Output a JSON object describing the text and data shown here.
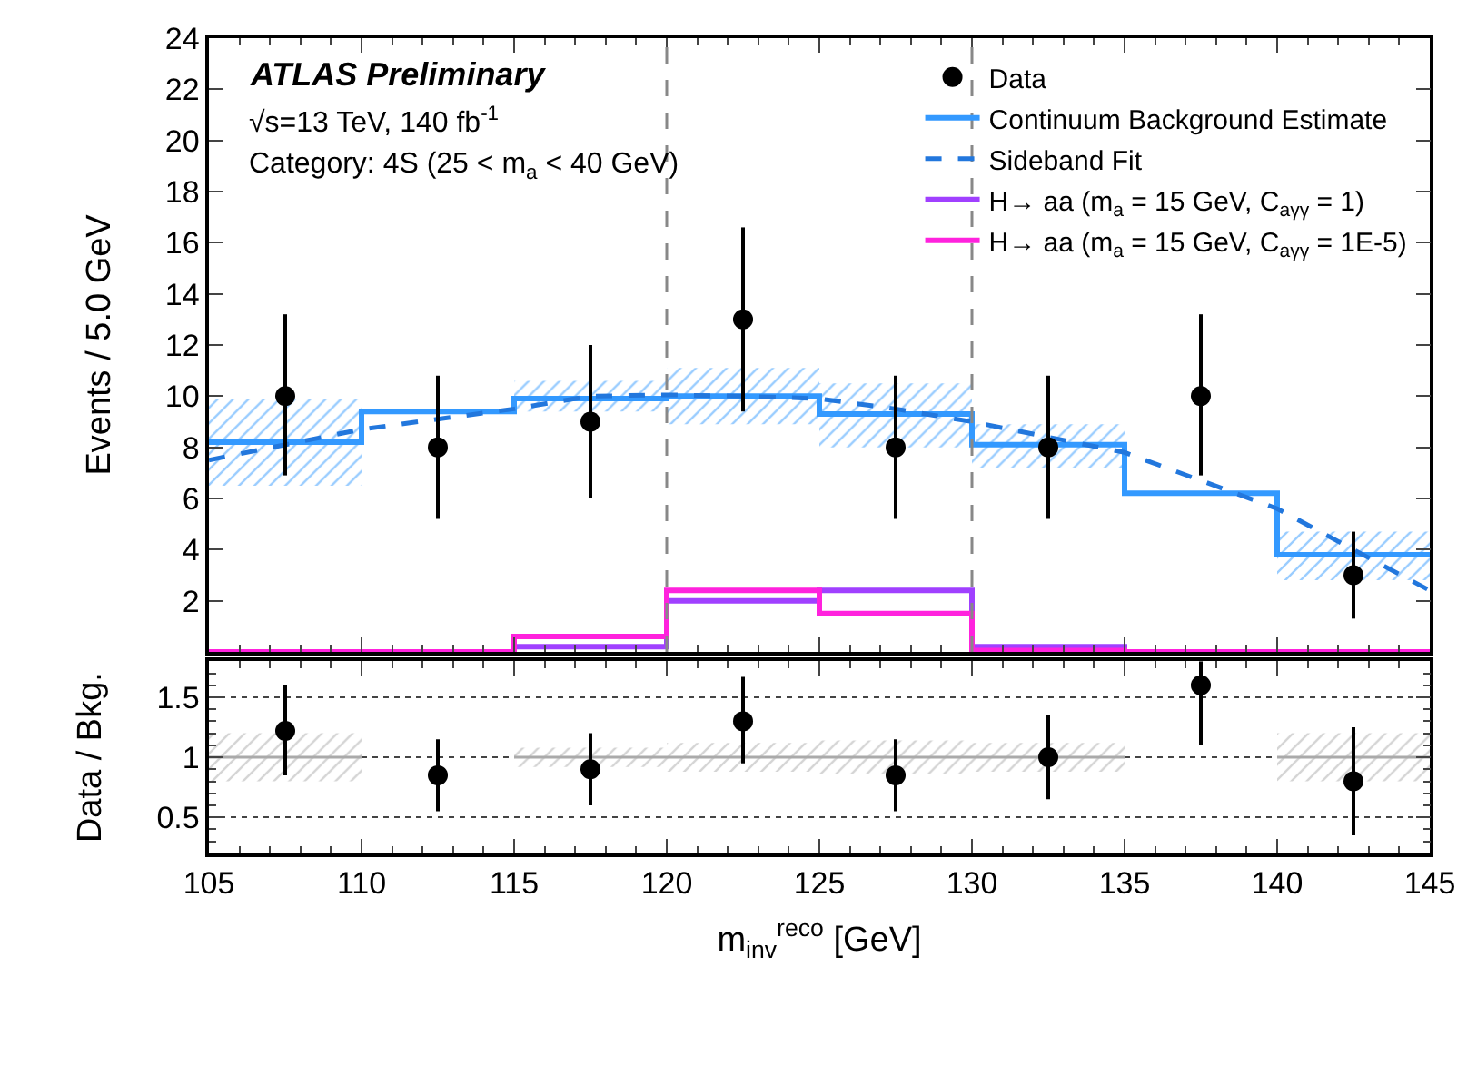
{
  "chart_data": [
    {
      "type": "scatter",
      "ylabel": "Events / 5.0 GeV",
      "xlim": [
        105,
        145
      ],
      "ylim": [
        0,
        24
      ],
      "xticks": [
        105,
        110,
        115,
        120,
        125,
        130,
        135,
        140,
        145
      ],
      "yticks": [
        2,
        4,
        6,
        8,
        10,
        12,
        14,
        16,
        18,
        20,
        22,
        24
      ],
      "tick_labels": "y",
      "grid": false,
      "legend": "top right",
      "annotations": [
        "ATLAS Preliminary",
        "√s=13 TeV, 140 fb$^{-1}$",
        "Category: 4S (25 < m$_{a}$ < 40 GeV)"
      ],
      "ref_lines": [
        {
          "axis": "x",
          "value": 120,
          "label": null,
          "color": "#888888",
          "line_style": "dashed"
        },
        {
          "axis": "x",
          "value": 130,
          "label": null,
          "color": "#888888",
          "line_style": "dashed"
        }
      ],
      "series": [
        {
          "type": "step",
          "name": "Continuum Background Estimate",
          "color": "#3399ff",
          "x": [
            105,
            110,
            115,
            120,
            125,
            130,
            135,
            140,
            145
          ],
          "values": [
            8.2,
            9.4,
            9.9,
            10.0,
            9.3,
            8.1,
            6.2,
            3.8,
            3.8
          ],
          "lower": [
            6.5,
            null,
            9.4,
            8.9,
            8.0,
            7.2,
            null,
            2.8,
            2.8
          ],
          "upper": [
            9.9,
            null,
            10.6,
            11.1,
            10.5,
            8.9,
            null,
            4.7,
            4.7
          ]
        },
        {
          "type": "line",
          "name": "Sideband Fit",
          "color": "#2277dd",
          "line_style": "dashed",
          "x": [
            105,
            110,
            115,
            117.5,
            120,
            122.5,
            125,
            127.5,
            130,
            135,
            140,
            145
          ],
          "values": [
            7.5,
            8.7,
            9.5,
            10.0,
            10.05,
            10.0,
            9.9,
            9.5,
            9.0,
            7.8,
            5.6,
            2.4
          ]
        },
        {
          "type": "step",
          "name": "H→ aa (m$_{a}$ = 15 GeV, C$_{aγγ}$ = 1)",
          "color": "#a040ff",
          "x": [
            105,
            110,
            115,
            120,
            125,
            130,
            135,
            140,
            145
          ],
          "values": [
            0,
            0,
            0.2,
            2.0,
            2.4,
            0.2,
            0,
            0,
            0
          ]
        },
        {
          "type": "step",
          "name": "H→ aa (m$_{a}$ = 15 GeV, C$_{aγγ}$ = 1E-5)",
          "color": "#ff22dd",
          "x": [
            105,
            110,
            115,
            120,
            125,
            130,
            135,
            140,
            145
          ],
          "values": [
            0,
            0,
            0.6,
            2.4,
            1.5,
            0.05,
            0,
            0,
            0
          ]
        },
        {
          "name": "Data",
          "color": "#000000",
          "marker": "circle",
          "x": [
            107.5,
            112.5,
            117.5,
            122.5,
            127.5,
            132.5,
            137.5,
            142.5
          ],
          "values": [
            10,
            8,
            9,
            13,
            8,
            8,
            10,
            3
          ],
          "errors": [
            [
              6.9,
              13.2
            ],
            [
              5.2,
              10.8
            ],
            [
              6.0,
              12.0
            ],
            [
              9.4,
              16.6
            ],
            [
              5.2,
              10.8
            ],
            [
              5.2,
              10.8
            ],
            [
              6.9,
              13.2
            ],
            [
              1.3,
              4.7
            ]
          ]
        }
      ]
    },
    {
      "type": "scatter",
      "xlabel": "m$_{inv}$$^{reco}$ [GeV]",
      "ylabel": "Data / Bkg.",
      "xlim": [
        105,
        145
      ],
      "ylim": [
        0.2,
        1.8
      ],
      "xticks": [
        105,
        110,
        115,
        120,
        125,
        130,
        135,
        140,
        145
      ],
      "yticks": [
        0.5,
        1,
        1.5
      ],
      "grid": "y",
      "legend": false,
      "series": [
        {
          "type": "step",
          "color": "#aaaaaa",
          "x": [
            105,
            110,
            115,
            120,
            125,
            130,
            135,
            140,
            145
          ],
          "values": [
            1,
            null,
            1,
            1,
            1,
            1,
            null,
            1,
            1
          ],
          "lower": [
            0.8,
            null,
            0.92,
            0.88,
            0.86,
            0.88,
            null,
            0.8,
            0.8
          ],
          "upper": [
            1.2,
            null,
            1.08,
            1.12,
            1.14,
            1.12,
            null,
            1.2,
            1.2
          ]
        },
        {
          "color": "#000000",
          "marker": "circle",
          "x": [
            107.5,
            112.5,
            117.5,
            122.5,
            127.5,
            132.5,
            137.5,
            142.5
          ],
          "values": [
            1.22,
            0.85,
            0.9,
            1.3,
            0.85,
            1.0,
            1.6,
            0.8
          ],
          "errors": [
            [
              0.85,
              1.6
            ],
            [
              0.55,
              1.15
            ],
            [
              0.6,
              1.2
            ],
            [
              0.95,
              1.67
            ],
            [
              0.55,
              1.15
            ],
            [
              0.65,
              1.35
            ],
            [
              1.1,
              1.8
            ],
            [
              0.35,
              1.25
            ]
          ]
        }
      ]
    }
  ]
}
